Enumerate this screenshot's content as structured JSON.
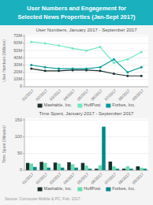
{
  "title": "User Numbers and Engagement for",
  "subtitle": "Selected News Properties (Jan-Sept 2017)",
  "annotations": [
    "Source: Comscore Mobile & PC, Feb. 2017"
  ],
  "chart_data": [
    {
      "type": "line",
      "title": "User Numbers, January 2017 - September 2017",
      "y_label": "User Numbers (Millions)",
      "categories": [
        "01/2017",
        "02/2017",
        "03/2017",
        "04/2017",
        "05/2017",
        "06/2017",
        "07/2017",
        "08/2017",
        "09/2017"
      ],
      "series": [
        {
          "name": "Mashable, Inc.",
          "color": "#1a2e2e",
          "marker": "circle",
          "values": [
            25,
            22,
            22,
            23,
            23,
            22,
            18,
            15,
            15
          ]
        },
        {
          "name": "HuffPost",
          "color": "#6ee8c0",
          "marker": "circle",
          "values": [
            62,
            60,
            57,
            53,
            50,
            55,
            33,
            38,
            48
          ]
        },
        {
          "name": "Forbes, Inc.",
          "color": "#009999",
          "marker": "circle",
          "values": [
            30,
            27,
            25,
            25,
            25,
            27,
            38,
            20,
            27
          ]
        }
      ],
      "ylim": [
        0,
        72
      ],
      "yticks": [
        0,
        {
          "value": 10,
          "label": "10M"
        },
        {
          "value": 20,
          "label": "20M"
        },
        {
          "value": 30,
          "label": "30M"
        },
        {
          "value": 40,
          "label": "40M"
        },
        {
          "value": 50,
          "label": "50M"
        },
        {
          "value": 60,
          "label": "60M"
        },
        {
          "value": 70,
          "label": "70M"
        }
      ],
      "grid": true,
      "legend": "bottom"
    },
    {
      "type": "bar",
      "title": "Time Spent, January 2017 - September 2017",
      "y_label": "Time Spent (Minutes)",
      "categories": [
        "01/2017",
        "02/2017",
        "03/2017",
        "04/2017",
        "05/2017",
        "06/2017",
        "07/2017",
        "08/2017",
        "09/2017"
      ],
      "series": [
        {
          "name": "Mashable, Inc.",
          "color": "#1a2e2e",
          "values": [
            22,
            25,
            23,
            24,
            22,
            5,
            26,
            5,
            12
          ]
        },
        {
          "name": "HuffPost",
          "color": "#66ddb0",
          "values": [
            20,
            22,
            20,
            18,
            14,
            15,
            12,
            12,
            8
          ]
        },
        {
          "name": "Forbes, Inc.",
          "color": "#008888",
          "values": [
            10,
            8,
            8,
            8,
            5,
            130,
            5,
            5,
            5
          ]
        }
      ],
      "ylim": [
        0,
        155
      ],
      "yticks": [
        0,
        50,
        100,
        150
      ],
      "grid": true,
      "legend": "bottom"
    }
  ]
}
